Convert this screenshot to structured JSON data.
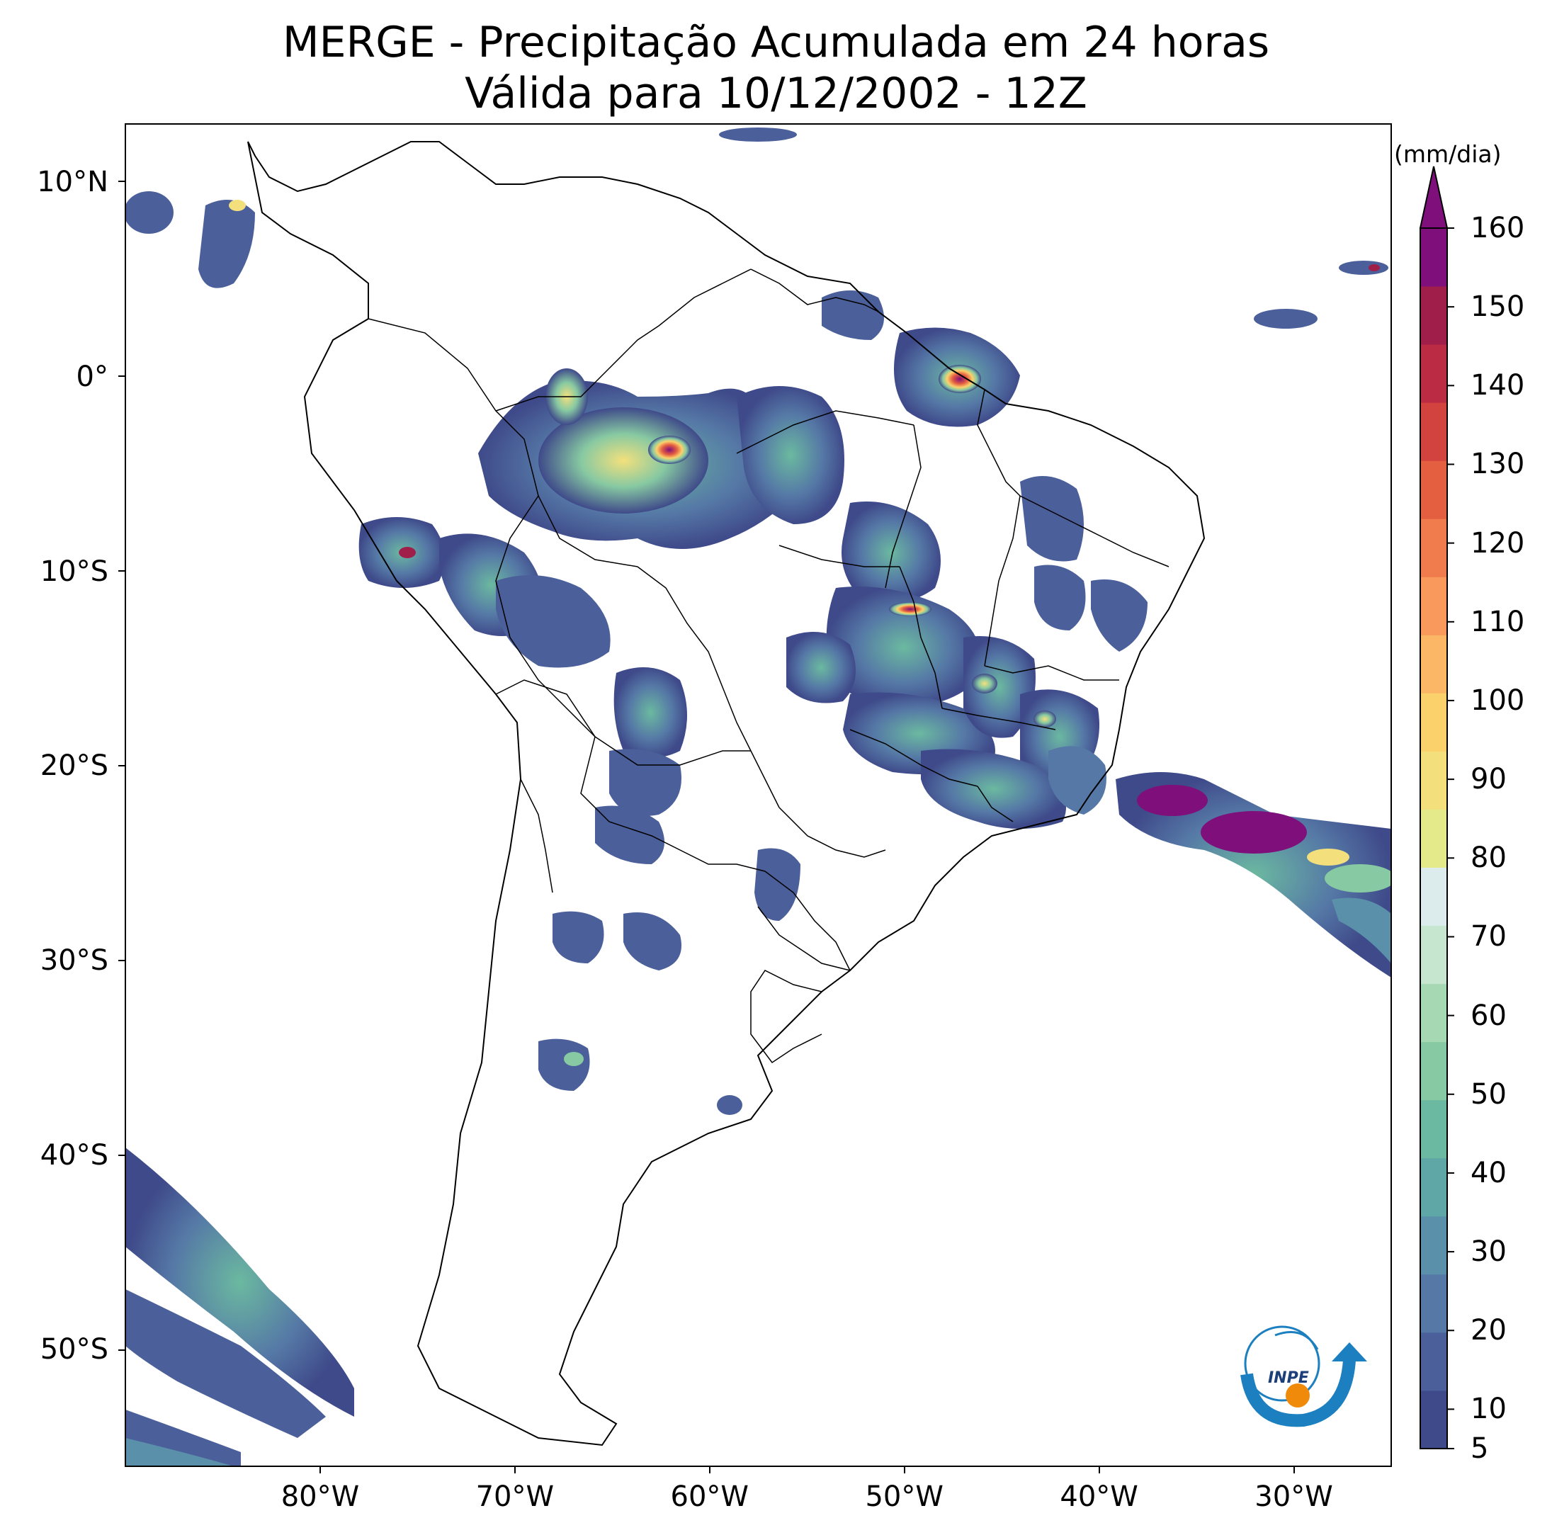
{
  "title": {
    "line1": "MERGE - Precipitação Acumulada em 24 horas",
    "line2": "Válida para 10/12/2002 - 12Z"
  },
  "map": {
    "lon_range": [
      -90,
      -25
    ],
    "lat_range": [
      -56,
      13
    ],
    "x_ticks": [
      {
        "lon": -80,
        "label": "80°W"
      },
      {
        "lon": -70,
        "label": "70°W"
      },
      {
        "lon": -60,
        "label": "60°W"
      },
      {
        "lon": -50,
        "label": "50°W"
      },
      {
        "lon": -40,
        "label": "40°W"
      },
      {
        "lon": -30,
        "label": "30°W"
      }
    ],
    "y_ticks": [
      {
        "lat": 10,
        "label": "10°N"
      },
      {
        "lat": 0,
        "label": "0°"
      },
      {
        "lat": -10,
        "label": "10°S"
      },
      {
        "lat": -20,
        "label": "20°S"
      },
      {
        "lat": -30,
        "label": "30°S"
      },
      {
        "lat": -40,
        "label": "40°S"
      },
      {
        "lat": -50,
        "label": "50°S"
      }
    ]
  },
  "colorbar": {
    "unit": "(mm/dia)",
    "min": 5,
    "max": 160,
    "tick_labels": [
      "5",
      "10",
      "20",
      "30",
      "40",
      "50",
      "60",
      "70",
      "80",
      "90",
      "100",
      "110",
      "120",
      "130",
      "140",
      "150",
      "160"
    ],
    "colors": [
      "#3f4a8a",
      "#4b5f9a",
      "#5578a6",
      "#5a90a9",
      "#5fa6a6",
      "#6bb9a0",
      "#87c9a2",
      "#a7d8b4",
      "#c7e6cf",
      "#dcecec",
      "#e4ea8a",
      "#f3e07c",
      "#fbd16c",
      "#fcb766",
      "#f99a5c",
      "#f07c4d",
      "#e45e40",
      "#d2423e",
      "#bb2b44",
      "#a01f4a",
      "#7f0f7a"
    ]
  },
  "logo": {
    "text": "INPE",
    "color_primary": "#1c7fc0",
    "color_dot": "#f08a0a"
  }
}
